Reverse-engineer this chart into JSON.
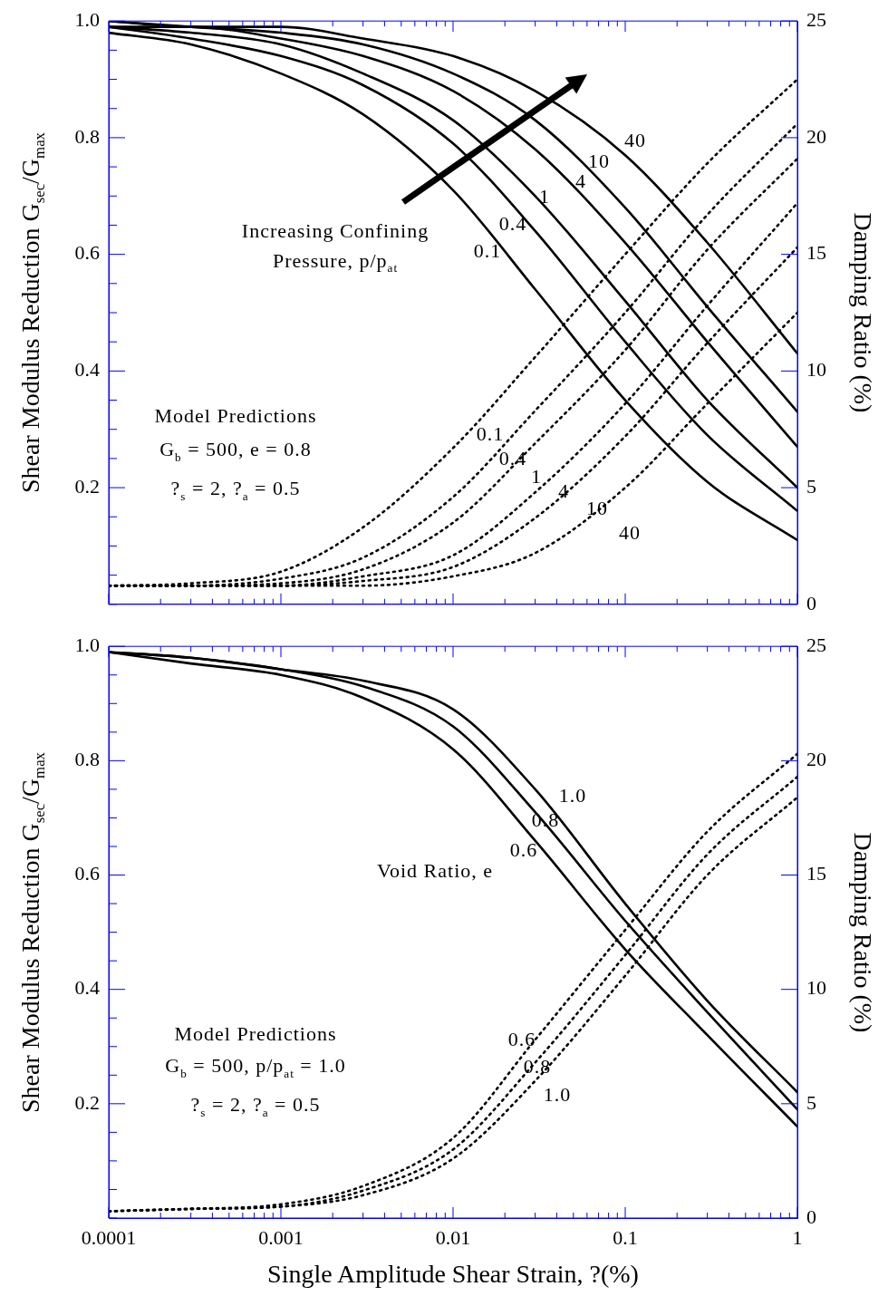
{
  "chart_data": [
    {
      "type": "line",
      "ylabel": "Shear Modulus Reduction G$_{sec}$/G$_{max}$",
      "y2label": "Damping Ratio (%)",
      "log": "x",
      "tick_labels": "y",
      "x": [
        0.0001,
        0.0003,
        0.001,
        0.003,
        0.01,
        0.03,
        0.1,
        0.3,
        1
      ],
      "xlim": [
        0.0001,
        1
      ],
      "xticks": [
        0.0001,
        {
          "value": 0.0002,
          "label": null
        },
        {
          "value": 0.0003,
          "label": null
        },
        {
          "value": 0.0004,
          "label": null
        },
        {
          "value": 0.0005,
          "label": null
        },
        {
          "value": 0.0006,
          "label": null
        },
        {
          "value": 0.0007,
          "label": null
        },
        {
          "value": 0.0008,
          "label": null
        },
        {
          "value": 0.0009,
          "label": null
        },
        0.001,
        {
          "value": 0.002,
          "label": null
        },
        {
          "value": 0.003,
          "label": null
        },
        {
          "value": 0.004,
          "label": null
        },
        {
          "value": 0.005,
          "label": null
        },
        {
          "value": 0.006,
          "label": null
        },
        {
          "value": 0.007,
          "label": null
        },
        {
          "value": 0.008,
          "label": null
        },
        {
          "value": 0.009,
          "label": null
        },
        0.01,
        {
          "value": 0.02,
          "label": null
        },
        {
          "value": 0.03,
          "label": null
        },
        {
          "value": 0.04,
          "label": null
        },
        {
          "value": 0.05,
          "label": null
        },
        {
          "value": 0.06,
          "label": null
        },
        {
          "value": 0.07,
          "label": null
        },
        {
          "value": 0.08,
          "label": null
        },
        {
          "value": 0.09,
          "label": null
        },
        0.1,
        {
          "value": 0.2,
          "label": null
        },
        {
          "value": 0.3,
          "label": null
        },
        {
          "value": 0.4,
          "label": null
        },
        {
          "value": 0.5,
          "label": null
        },
        {
          "value": 0.6,
          "label": null
        },
        {
          "value": 0.7,
          "label": null
        },
        {
          "value": 0.8,
          "label": null
        },
        {
          "value": 0.9,
          "label": null
        },
        1
      ],
      "ylim": [
        0,
        1
      ],
      "yticks": [
        {
          "value": 0,
          "label": null
        },
        {
          "value": 0.05,
          "label": null
        },
        {
          "value": 0.1,
          "label": null
        },
        {
          "value": 0.15,
          "label": null
        },
        0.2,
        {
          "value": 0.25,
          "label": null
        },
        {
          "value": 0.3,
          "label": null
        },
        {
          "value": 0.35,
          "label": null
        },
        0.4,
        {
          "value": 0.45,
          "label": null
        },
        {
          "value": 0.5,
          "label": null
        },
        {
          "value": 0.55,
          "label": null
        },
        0.6,
        {
          "value": 0.65,
          "label": null
        },
        {
          "value": 0.7,
          "label": null
        },
        {
          "value": 0.75,
          "label": null
        },
        0.8,
        {
          "value": 0.85,
          "label": null
        },
        {
          "value": 0.9,
          "label": null
        },
        {
          "value": 0.95,
          "label": null
        },
        {
          "value": 1,
          "label": "1.0"
        }
      ],
      "y2lim": [
        0,
        25
      ],
      "y2ticks": [
        0,
        5,
        10,
        15,
        20,
        25
      ],
      "series": [
        {
          "color": "#000000",
          "line_style": "solid",
          "values": [
            0.98,
            0.96,
            0.91,
            0.84,
            0.71,
            0.54,
            0.35,
            0.21,
            0.11
          ]
        },
        {
          "color": "#000000",
          "line_style": "solid",
          "values": [
            0.99,
            0.97,
            0.94,
            0.89,
            0.79,
            0.64,
            0.45,
            0.29,
            0.16
          ]
        },
        {
          "color": "#000000",
          "line_style": "solid",
          "values": [
            0.99,
            0.98,
            0.96,
            0.91,
            0.83,
            0.7,
            0.52,
            0.35,
            0.2
          ]
        },
        {
          "color": "#000000",
          "line_style": "solid",
          "values": [
            0.99,
            0.99,
            0.97,
            0.94,
            0.88,
            0.78,
            0.62,
            0.45,
            0.27
          ]
        },
        {
          "color": "#000000",
          "line_style": "solid",
          "values": [
            1.0,
            0.99,
            0.98,
            0.96,
            0.91,
            0.83,
            0.68,
            0.51,
            0.33
          ]
        },
        {
          "color": "#000000",
          "line_style": "solid",
          "values": [
            1.0,
            0.99,
            0.99,
            0.97,
            0.94,
            0.88,
            0.77,
            0.62,
            0.43
          ]
        },
        {
          "color": "#000000",
          "line_style": "dotted",
          "axis": "y2",
          "values": [
            0.8,
            0.9,
            1.4,
            3.3,
            6.7,
            10.6,
            15.0,
            18.9,
            22.5
          ]
        },
        {
          "color": "#000000",
          "line_style": "dotted",
          "axis": "y2",
          "values": [
            0.8,
            0.8,
            1.1,
            2.0,
            4.6,
            8.3,
            12.5,
            16.7,
            20.6
          ]
        },
        {
          "color": "#000000",
          "line_style": "dotted",
          "axis": "y2",
          "values": [
            0.8,
            0.8,
            0.9,
            1.5,
            3.5,
            6.9,
            10.9,
            15.2,
            19.1
          ]
        },
        {
          "color": "#000000",
          "line_style": "dotted",
          "axis": "y2",
          "values": [
            0.8,
            0.8,
            0.8,
            1.2,
            2.1,
            4.8,
            8.6,
            12.8,
            17.2
          ]
        },
        {
          "color": "#000000",
          "line_style": "dotted",
          "axis": "y2",
          "values": [
            0.8,
            0.8,
            0.8,
            1.0,
            1.6,
            3.7,
            7.2,
            11.2,
            15.3
          ]
        },
        {
          "color": "#000000",
          "line_style": "dotted",
          "axis": "y2",
          "values": [
            0.8,
            0.8,
            0.8,
            0.8,
            1.2,
            2.2,
            5.0,
            8.6,
            12.5
          ]
        }
      ],
      "annotations": [
        "Increasing Confining Pressure, p/p$_{at}$",
        "Model Predictions",
        "G$_{b}$ = 500, e = 0.8",
        "?$_{s}$ = 2, ?$_{a}$ = 0.5",
        "0.1",
        "0.4",
        "1",
        "4",
        "10",
        "40",
        "0.1",
        "0.4",
        "1",
        "4",
        "10",
        "40"
      ]
    },
    {
      "type": "line",
      "xlabel": "Single Amplitude Shear Strain, ?(%)",
      "ylabel": "Shear Modulus Reduction G$_{sec}$/G$_{max}$",
      "y2label": "Damping Ratio (%)",
      "log": "x",
      "x": [
        0.0001,
        0.0003,
        0.001,
        0.003,
        0.01,
        0.03,
        0.1,
        0.3,
        1
      ],
      "xlim": [
        0.0001,
        1
      ],
      "xticks": [
        0.0001,
        {
          "value": 0.0002,
          "label": null
        },
        {
          "value": 0.0003,
          "label": null
        },
        {
          "value": 0.0004,
          "label": null
        },
        {
          "value": 0.0005,
          "label": null
        },
        {
          "value": 0.0006,
          "label": null
        },
        {
          "value": 0.0007,
          "label": null
        },
        {
          "value": 0.0008,
          "label": null
        },
        {
          "value": 0.0009,
          "label": null
        },
        0.001,
        {
          "value": 0.002,
          "label": null
        },
        {
          "value": 0.003,
          "label": null
        },
        {
          "value": 0.004,
          "label": null
        },
        {
          "value": 0.005,
          "label": null
        },
        {
          "value": 0.006,
          "label": null
        },
        {
          "value": 0.007,
          "label": null
        },
        {
          "value": 0.008,
          "label": null
        },
        {
          "value": 0.009,
          "label": null
        },
        0.01,
        {
          "value": 0.02,
          "label": null
        },
        {
          "value": 0.03,
          "label": null
        },
        {
          "value": 0.04,
          "label": null
        },
        {
          "value": 0.05,
          "label": null
        },
        {
          "value": 0.06,
          "label": null
        },
        {
          "value": 0.07,
          "label": null
        },
        {
          "value": 0.08,
          "label": null
        },
        {
          "value": 0.09,
          "label": null
        },
        0.1,
        {
          "value": 0.2,
          "label": null
        },
        {
          "value": 0.3,
          "label": null
        },
        {
          "value": 0.4,
          "label": null
        },
        {
          "value": 0.5,
          "label": null
        },
        {
          "value": 0.6,
          "label": null
        },
        {
          "value": 0.7,
          "label": null
        },
        {
          "value": 0.8,
          "label": null
        },
        {
          "value": 0.9,
          "label": null
        },
        1
      ],
      "ylim": [
        0,
        1
      ],
      "yticks": [
        {
          "value": 0,
          "label": null
        },
        {
          "value": 0.05,
          "label": null
        },
        {
          "value": 0.1,
          "label": null
        },
        {
          "value": 0.15,
          "label": null
        },
        0.2,
        {
          "value": 0.25,
          "label": null
        },
        {
          "value": 0.3,
          "label": null
        },
        {
          "value": 0.35,
          "label": null
        },
        0.4,
        {
          "value": 0.45,
          "label": null
        },
        {
          "value": 0.5,
          "label": null
        },
        {
          "value": 0.55,
          "label": null
        },
        0.6,
        {
          "value": 0.65,
          "label": null
        },
        {
          "value": 0.7,
          "label": null
        },
        {
          "value": 0.75,
          "label": null
        },
        0.8,
        {
          "value": 0.85,
          "label": null
        },
        {
          "value": 0.9,
          "label": null
        },
        {
          "value": 0.95,
          "label": null
        },
        {
          "value": 1,
          "label": "1.0"
        }
      ],
      "y2lim": [
        0,
        25
      ],
      "y2ticks": [
        0,
        5,
        10,
        15,
        20,
        25
      ],
      "series": [
        {
          "color": "#000000",
          "line_style": "solid",
          "values": [
            0.99,
            0.97,
            0.95,
            0.91,
            0.82,
            0.66,
            0.47,
            0.32,
            0.16
          ]
        },
        {
          "color": "#000000",
          "line_style": "solid",
          "values": [
            0.99,
            0.98,
            0.96,
            0.93,
            0.86,
            0.71,
            0.52,
            0.36,
            0.19
          ]
        },
        {
          "color": "#000000",
          "line_style": "solid",
          "values": [
            0.99,
            0.98,
            0.96,
            0.94,
            0.89,
            0.75,
            0.55,
            0.38,
            0.22
          ]
        },
        {
          "color": "#000000",
          "line_style": "dotted",
          "axis": "y2",
          "values": [
            0.3,
            0.4,
            0.6,
            1.4,
            3.5,
            7.8,
            12.6,
            16.9,
            20.3
          ]
        },
        {
          "color": "#000000",
          "line_style": "dotted",
          "axis": "y2",
          "values": [
            0.3,
            0.4,
            0.5,
            1.2,
            3.0,
            6.8,
            11.5,
            15.9,
            19.3
          ]
        },
        {
          "color": "#000000",
          "line_style": "dotted",
          "axis": "y2",
          "values": [
            0.3,
            0.4,
            0.5,
            1.0,
            2.6,
            6.0,
            10.6,
            15.0,
            18.4
          ]
        }
      ],
      "annotations": [
        "Void Ratio, e",
        "Model Predictions",
        "G$_{b}$ = 500, p/p$_{at}$ = 1.0",
        "?$_{s}$ = 2, ?$_{a}$ = 0.5",
        "1.0",
        "0.8",
        "0.6",
        "0.6",
        "0.8",
        "1.0"
      ]
    }
  ]
}
